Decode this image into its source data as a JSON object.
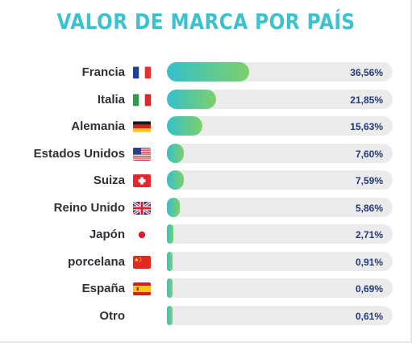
{
  "chart_data": {
    "type": "bar",
    "title": "VALOR DE MARCA POR PAÍS",
    "categories": [
      "Francia",
      "Italia",
      "Alemania",
      "Estados Unidos",
      "Suiza",
      "Reino Unido",
      "Japón",
      "porcelana",
      "España",
      "Otro"
    ],
    "values": [
      36.56,
      21.85,
      15.63,
      7.6,
      7.59,
      5.86,
      2.71,
      0.91,
      0.69,
      0.61
    ],
    "value_labels": [
      "36,56%",
      "21,85%",
      "15,63%",
      "7,60%",
      "7,59%",
      "5,86%",
      "2,71%",
      "0,91%",
      "0,69%",
      "0,61%"
    ],
    "flags": [
      "france-flag-icon",
      "italy-flag-icon",
      "germany-flag-icon",
      "usa-flag-icon",
      "switzerland-flag-icon",
      "uk-flag-icon",
      "japan-flag-icon",
      "china-flag-icon",
      "spain-flag-icon",
      ""
    ],
    "xlim": [
      0,
      100
    ],
    "orientation": "horizontal",
    "grid": false,
    "colors": {
      "title": "#3cc2cf",
      "bar_start": "#34c0cc",
      "bar_end": "#7ed06a",
      "track": "#ebebeb",
      "value_text": "#223a7a",
      "label_text": "#2f3035"
    }
  }
}
